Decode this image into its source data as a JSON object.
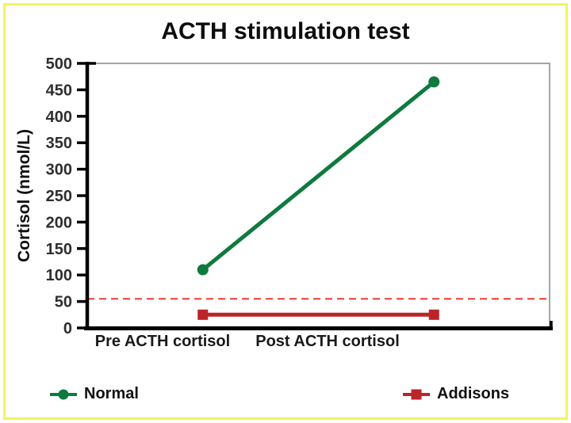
{
  "page": {
    "background": "#ffffff",
    "border_color": "#f5f163"
  },
  "chart_data": {
    "type": "line",
    "title": "ACTH stimulation test",
    "ylabel": "Cortisol (nmol/L)",
    "xlabel": "",
    "categories": [
      "Pre ACTH cortisol",
      "Post ACTH cortisol"
    ],
    "series": [
      {
        "name": "Normal",
        "values": [
          110,
          465
        ],
        "color": "#0e7a3e",
        "marker": "circle"
      },
      {
        "name": "Addisons",
        "values": [
          25,
          25
        ],
        "color": "#bb2429",
        "marker": "square"
      }
    ],
    "reference_line": {
      "value": 55,
      "color": "#ee3a34",
      "style": "dashed"
    },
    "ylim": [
      0,
      500
    ],
    "ytick_step": 50,
    "grid": false,
    "legend_position": "bottom",
    "axis_color": "#000000",
    "frame_color": "#909090",
    "tick_label_color": "#2e2e2e"
  }
}
